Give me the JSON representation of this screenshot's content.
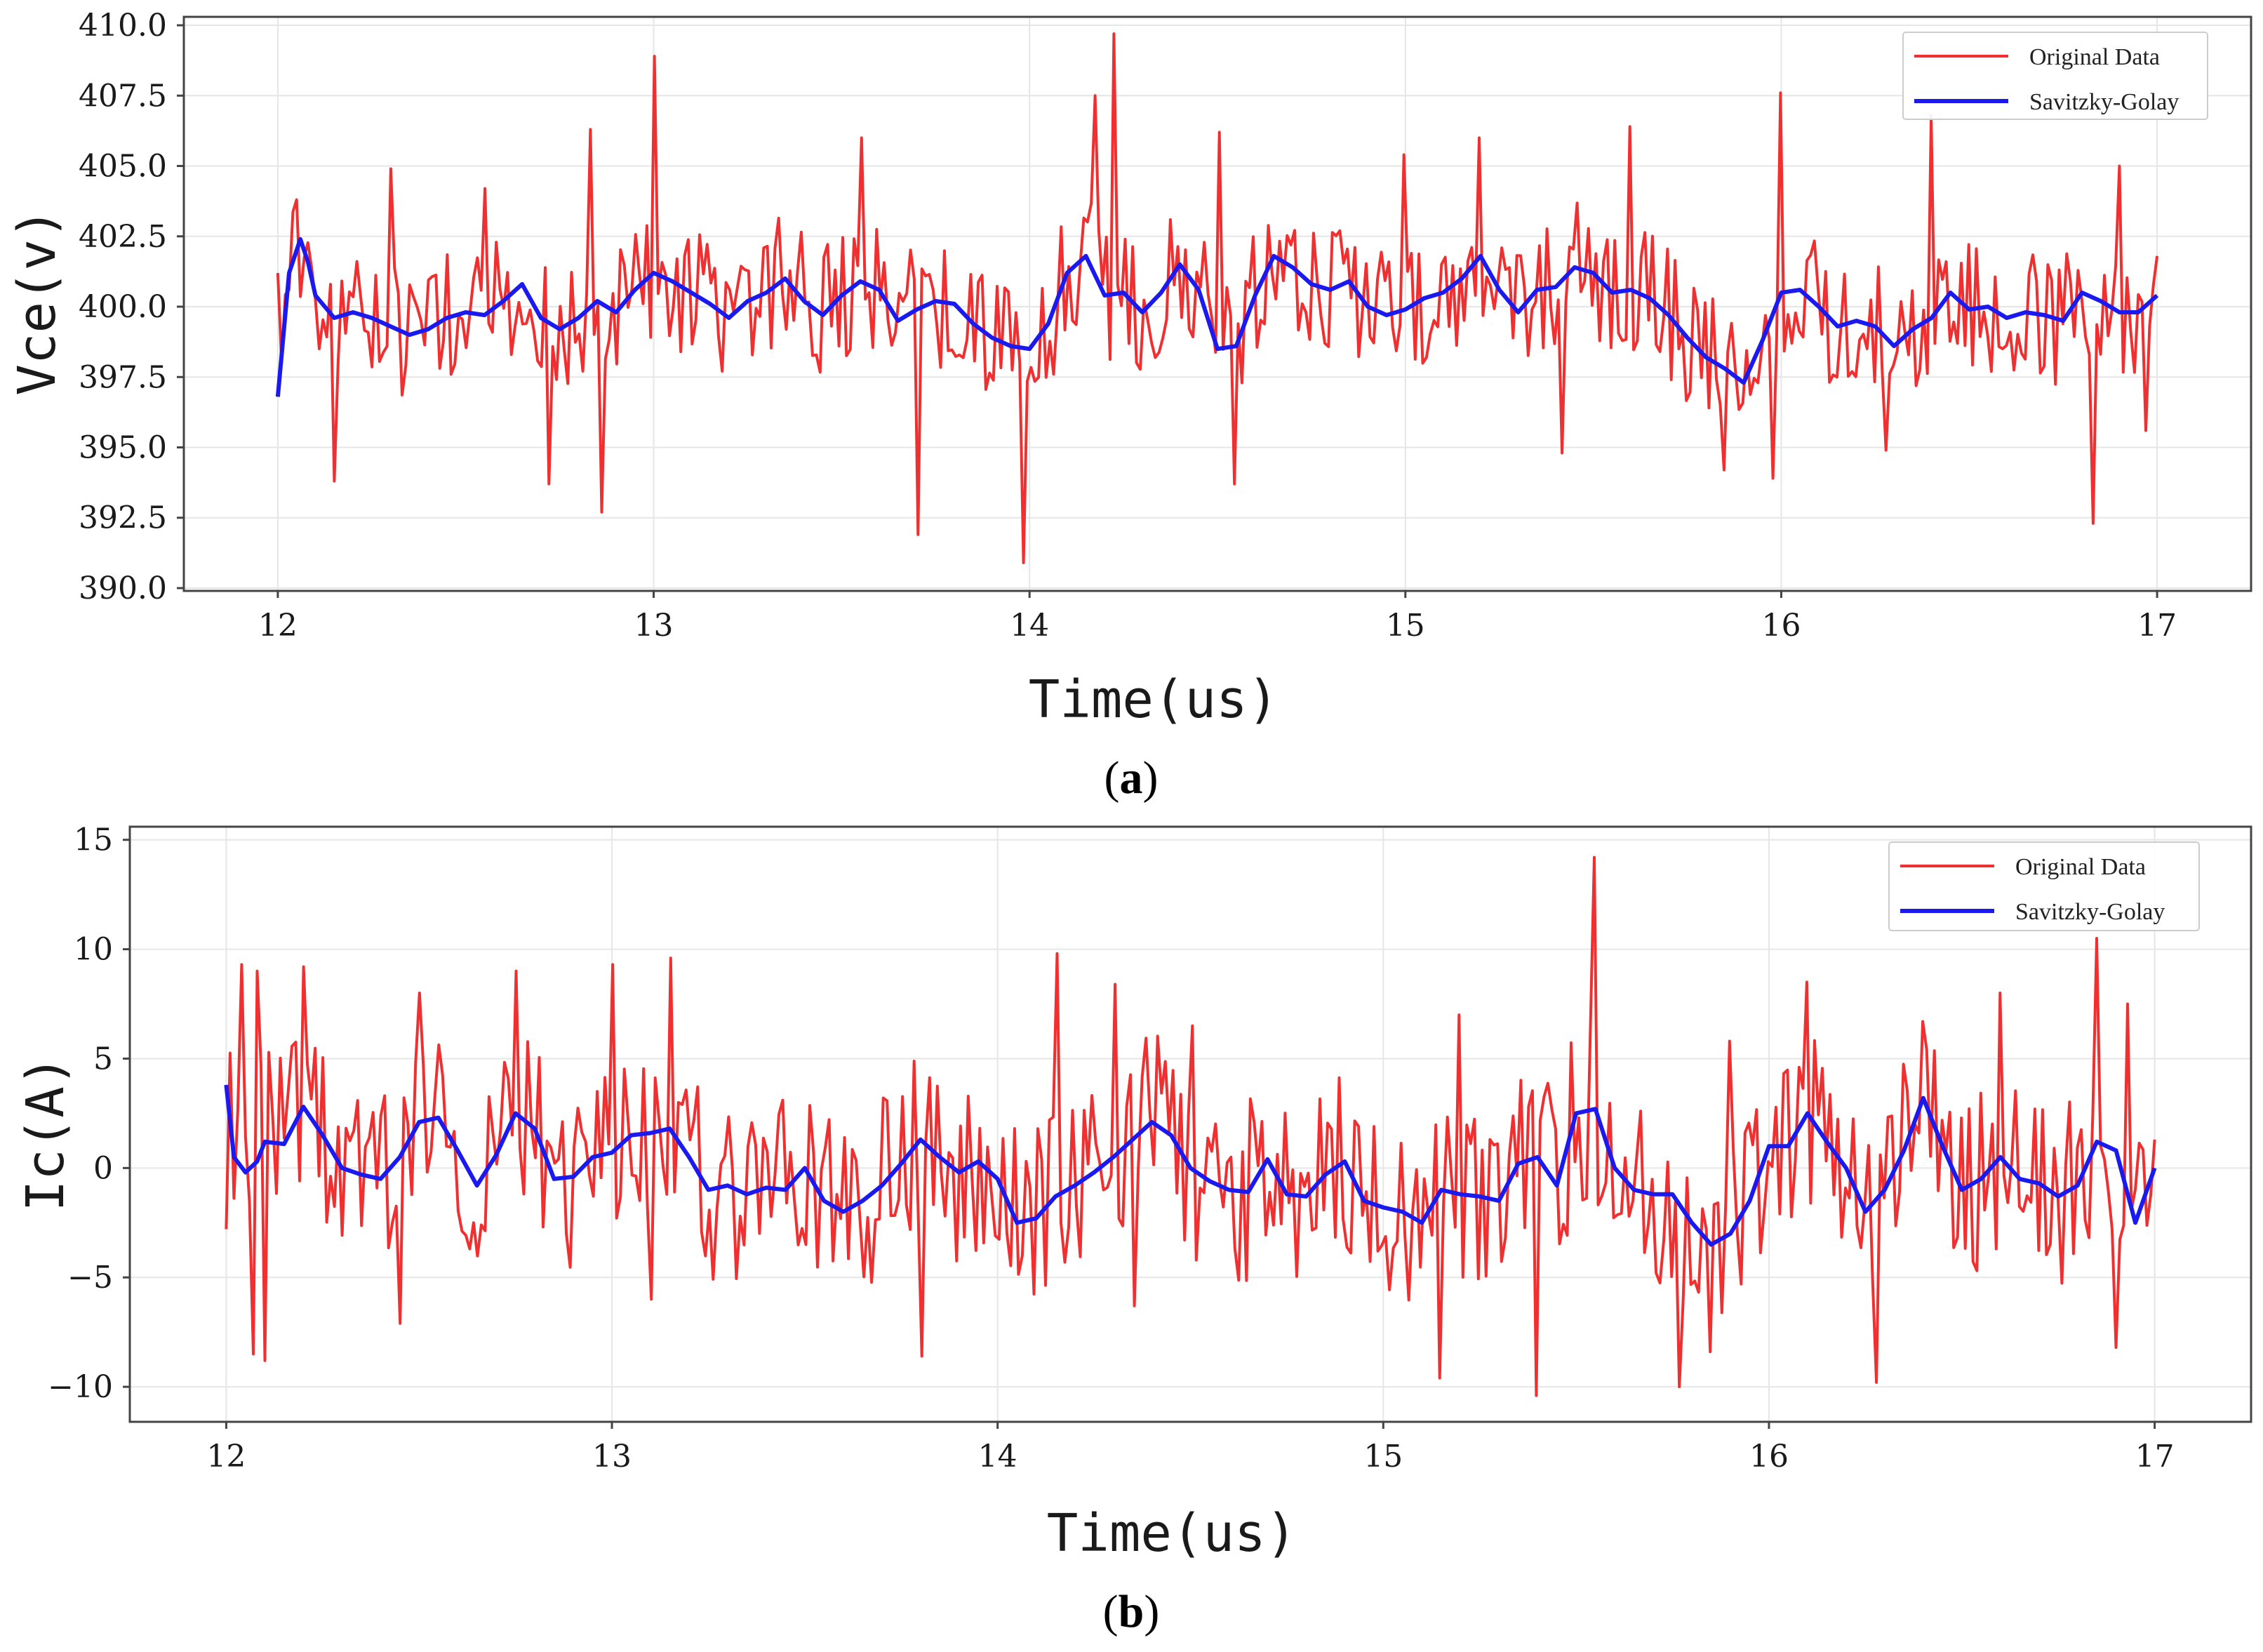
{
  "colors": {
    "original": "#f03030",
    "filtered": "#1a1aee",
    "axis": "#444444",
    "grid": "#e6e6e6"
  },
  "chart_data": [
    {
      "type": "line",
      "panel_label": "(a)",
      "panel_label_bold": "a",
      "xlabel": "Time(us)",
      "ylabel": "Vce(v)",
      "xlim": [
        11.75,
        17.25
      ],
      "ylim": [
        389.9,
        410.3
      ],
      "xticks": [
        12,
        13,
        14,
        15,
        16,
        17
      ],
      "xtick_labels": [
        "12",
        "13",
        "14",
        "15",
        "16",
        "17"
      ],
      "yticks": [
        390,
        392.5,
        395,
        397.5,
        400,
        402.5,
        405,
        407.5,
        410
      ],
      "ytick_labels": [
        "390.0",
        "392.5",
        "395.0",
        "397.5",
        "400.0",
        "402.5",
        "405.0",
        "407.5",
        "410.0"
      ],
      "grid": true,
      "legend_position": "top-right",
      "legend": [
        "Original Data",
        "Savitzky-Golay"
      ],
      "noise": {
        "seed": 11,
        "amplitude": 2.6
      },
      "series": [
        {
          "name": "Original Data",
          "x_start": 12,
          "x_end": 17,
          "n": 500,
          "peaks": [
            [
              12.05,
              403.8
            ],
            [
              12.3,
              404.9
            ],
            [
              12.55,
              404.2
            ],
            [
              12.83,
              406.3
            ],
            [
              13.0,
              408.9
            ],
            [
              13.55,
              406.0
            ],
            [
              14.17,
              407.5
            ],
            [
              14.22,
              409.7
            ],
            [
              14.5,
              406.2
            ],
            [
              15.0,
              405.4
            ],
            [
              15.2,
              406.0
            ],
            [
              15.6,
              406.4
            ],
            [
              16.0,
              407.6
            ],
            [
              16.4,
              406.8
            ],
            [
              16.9,
              405.0
            ]
          ],
          "dips": [
            [
              12.15,
              393.8
            ],
            [
              12.72,
              393.7
            ],
            [
              12.86,
              392.7
            ],
            [
              13.7,
              391.9
            ],
            [
              13.98,
              390.9
            ],
            [
              14.55,
              393.7
            ],
            [
              15.42,
              394.8
            ],
            [
              15.85,
              394.2
            ],
            [
              15.98,
              393.9
            ],
            [
              16.28,
              394.9
            ],
            [
              16.83,
              392.3
            ],
            [
              16.97,
              395.6
            ]
          ],
          "end_values": [
            401.2,
            401.8
          ]
        },
        {
          "name": "Savitzky-Golay",
          "x": [
            12.0,
            12.03,
            12.06,
            12.08,
            12.1,
            12.15,
            12.2,
            12.25,
            12.3,
            12.35,
            12.4,
            12.45,
            12.5,
            12.55,
            12.6,
            12.65,
            12.7,
            12.75,
            12.8,
            12.85,
            12.9,
            12.95,
            13.0,
            13.05,
            13.1,
            13.15,
            13.2,
            13.25,
            13.3,
            13.35,
            13.4,
            13.45,
            13.5,
            13.55,
            13.6,
            13.65,
            13.7,
            13.75,
            13.8,
            13.85,
            13.9,
            13.95,
            14.0,
            14.05,
            14.1,
            14.15,
            14.2,
            14.25,
            14.3,
            14.35,
            14.4,
            14.45,
            14.5,
            14.55,
            14.6,
            14.65,
            14.7,
            14.75,
            14.8,
            14.85,
            14.9,
            14.95,
            15.0,
            15.05,
            15.1,
            15.15,
            15.2,
            15.25,
            15.3,
            15.35,
            15.4,
            15.45,
            15.5,
            15.55,
            15.6,
            15.65,
            15.7,
            15.75,
            15.8,
            15.85,
            15.9,
            15.95,
            16.0,
            16.05,
            16.1,
            16.15,
            16.2,
            16.25,
            16.3,
            16.35,
            16.4,
            16.45,
            16.5,
            16.55,
            16.6,
            16.65,
            16.7,
            16.75,
            16.8,
            16.85,
            16.9,
            16.95,
            17.0
          ],
          "values": [
            396.8,
            401.2,
            402.4,
            401.6,
            400.4,
            399.6,
            399.8,
            399.6,
            399.3,
            399.0,
            399.2,
            399.6,
            399.8,
            399.7,
            400.2,
            400.8,
            399.6,
            399.2,
            399.6,
            400.2,
            399.8,
            400.6,
            401.2,
            400.9,
            400.5,
            400.1,
            399.6,
            400.2,
            400.5,
            401.0,
            400.2,
            399.7,
            400.4,
            400.9,
            400.6,
            399.5,
            399.9,
            400.2,
            400.1,
            399.4,
            398.9,
            398.6,
            398.5,
            399.4,
            401.2,
            401.8,
            400.4,
            400.5,
            399.8,
            400.5,
            401.5,
            400.6,
            398.5,
            398.6,
            400.4,
            401.8,
            401.4,
            400.8,
            400.6,
            400.9,
            400.0,
            399.7,
            399.9,
            400.3,
            400.5,
            401.0,
            401.8,
            400.6,
            399.8,
            400.6,
            400.7,
            401.4,
            401.2,
            400.5,
            400.6,
            400.3,
            399.7,
            398.9,
            398.2,
            397.8,
            397.3,
            398.8,
            400.5,
            400.6,
            400.0,
            399.3,
            399.5,
            399.3,
            398.6,
            399.2,
            399.6,
            400.5,
            399.9,
            400.0,
            399.6,
            399.8,
            399.7,
            399.5,
            400.5,
            400.2,
            399.8,
            399.8,
            400.4
          ]
        }
      ]
    },
    {
      "type": "line",
      "panel_label": "(b)",
      "panel_label_bold": "b",
      "xlabel": "Time(us)",
      "ylabel": "Ic(A)",
      "xlim": [
        11.75,
        17.25
      ],
      "ylim": [
        -11.6,
        15.6
      ],
      "xticks": [
        12,
        13,
        14,
        15,
        16,
        17
      ],
      "xtick_labels": [
        "12",
        "13",
        "14",
        "15",
        "16",
        "17"
      ],
      "yticks": [
        -10,
        -5,
        0,
        5,
        10,
        15
      ],
      "ytick_labels": [
        "−10",
        "−5",
        "0",
        "5",
        "10",
        "15"
      ],
      "grid": true,
      "legend_position": "top-right",
      "legend": [
        "Original Data",
        "Savitzky-Golay"
      ],
      "noise": {
        "seed": 29,
        "amplitude": 4.6
      },
      "series": [
        {
          "name": "Original Data",
          "x_start": 12,
          "x_end": 17,
          "n": 500,
          "peaks": [
            [
              12.04,
              9.3
            ],
            [
              12.08,
              9.0
            ],
            [
              12.2,
              9.2
            ],
            [
              12.5,
              8.0
            ],
            [
              12.75,
              9.0
            ],
            [
              13.0,
              9.3
            ],
            [
              13.15,
              9.6
            ],
            [
              14.15,
              9.8
            ],
            [
              14.3,
              8.4
            ],
            [
              14.5,
              6.5
            ],
            [
              15.2,
              7.0
            ],
            [
              15.55,
              14.2
            ],
            [
              15.9,
              5.8
            ],
            [
              16.1,
              8.5
            ],
            [
              16.4,
              6.7
            ],
            [
              16.6,
              8.0
            ],
            [
              16.85,
              10.5
            ],
            [
              16.93,
              7.5
            ]
          ],
          "dips": [
            [
              12.07,
              -8.5
            ],
            [
              12.1,
              -8.8
            ],
            [
              12.45,
              -7.1
            ],
            [
              13.1,
              -6.0
            ],
            [
              13.8,
              -8.6
            ],
            [
              14.35,
              -6.3
            ],
            [
              15.15,
              -9.6
            ],
            [
              15.4,
              -10.4
            ],
            [
              15.77,
              -10.0
            ],
            [
              15.85,
              -8.4
            ],
            [
              16.28,
              -9.8
            ],
            [
              16.9,
              -8.2
            ]
          ],
          "end_values": [
            -2.8,
            1.3
          ]
        },
        {
          "name": "Savitzky-Golay",
          "x": [
            12.0,
            12.02,
            12.05,
            12.08,
            12.1,
            12.15,
            12.2,
            12.25,
            12.3,
            12.35,
            12.4,
            12.45,
            12.5,
            12.55,
            12.6,
            12.65,
            12.7,
            12.75,
            12.8,
            12.85,
            12.9,
            12.95,
            13.0,
            13.05,
            13.1,
            13.15,
            13.2,
            13.25,
            13.3,
            13.35,
            13.4,
            13.45,
            13.5,
            13.55,
            13.6,
            13.65,
            13.7,
            13.75,
            13.8,
            13.85,
            13.9,
            13.95,
            14.0,
            14.05,
            14.1,
            14.15,
            14.2,
            14.25,
            14.3,
            14.35,
            14.4,
            14.45,
            14.5,
            14.55,
            14.6,
            14.65,
            14.7,
            14.75,
            14.8,
            14.85,
            14.9,
            14.95,
            15.0,
            15.05,
            15.1,
            15.15,
            15.2,
            15.25,
            15.3,
            15.35,
            15.4,
            15.45,
            15.5,
            15.55,
            15.6,
            15.65,
            15.7,
            15.75,
            15.8,
            15.85,
            15.9,
            15.95,
            16.0,
            16.05,
            16.1,
            16.15,
            16.2,
            16.25,
            16.3,
            16.35,
            16.4,
            16.45,
            16.5,
            16.55,
            16.6,
            16.65,
            16.7,
            16.75,
            16.8,
            16.85,
            16.9,
            16.95,
            17.0
          ],
          "values": [
            3.8,
            0.5,
            -0.2,
            0.3,
            1.2,
            1.1,
            2.8,
            1.5,
            0.0,
            -0.3,
            -0.5,
            0.5,
            2.1,
            2.3,
            0.8,
            -0.8,
            0.6,
            2.5,
            1.8,
            -0.5,
            -0.4,
            0.5,
            0.7,
            1.5,
            1.6,
            1.8,
            0.5,
            -1.0,
            -0.8,
            -1.2,
            -0.9,
            -1.0,
            0.0,
            -1.5,
            -2.0,
            -1.5,
            -0.8,
            0.2,
            1.3,
            0.5,
            -0.2,
            0.3,
            -0.5,
            -2.5,
            -2.3,
            -1.3,
            -0.8,
            -0.2,
            0.5,
            1.3,
            2.1,
            1.5,
            0.0,
            -0.6,
            -1.0,
            -1.1,
            0.4,
            -1.2,
            -1.3,
            -0.3,
            0.3,
            -1.5,
            -1.8,
            -2.0,
            -2.5,
            -1.0,
            -1.2,
            -1.3,
            -1.5,
            0.2,
            0.5,
            -0.8,
            2.5,
            2.7,
            0.0,
            -1.0,
            -1.2,
            -1.2,
            -2.5,
            -3.5,
            -3.0,
            -1.5,
            1.0,
            1.0,
            2.5,
            1.2,
            0.0,
            -2.0,
            -1.0,
            0.8,
            3.2,
            1.0,
            -1.0,
            -0.5,
            0.5,
            -0.5,
            -0.7,
            -1.3,
            -0.8,
            1.2,
            0.8,
            -2.5,
            0.0
          ]
        }
      ]
    }
  ]
}
